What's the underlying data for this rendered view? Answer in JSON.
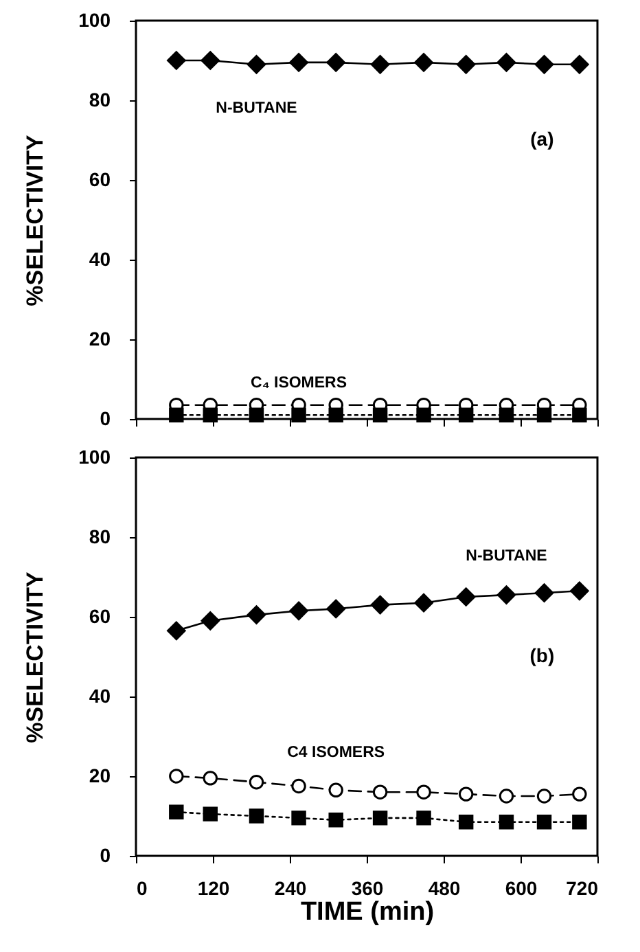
{
  "chart_data": [
    {
      "type": "line",
      "annotations": [
        "(a)"
      ],
      "x": [
        63,
        116,
        188,
        254,
        312,
        381,
        449,
        515,
        578,
        637,
        692
      ],
      "xlim": [
        0,
        720
      ],
      "xticks": [
        0,
        120,
        240,
        360,
        480,
        600,
        720
      ],
      "ylim": [
        0,
        100
      ],
      "yticks": [
        0,
        20,
        40,
        60,
        80,
        100
      ],
      "ylabel": "%SELECTIVITY",
      "tick_labels": "y",
      "series": [
        {
          "name": "N-BUTANE",
          "color": "#000000",
          "marker": "diamond",
          "line_style": "solid",
          "values": [
            90,
            90,
            89,
            89.5,
            89.5,
            89,
            89.5,
            89,
            89.5,
            89,
            89
          ]
        },
        {
          "name": "C₄ ISOMERS",
          "color": "#000000",
          "marker": "circle",
          "line_style": "dashed",
          "values": [
            3.5,
            3.5,
            3.5,
            3.5,
            3.5,
            3.5,
            3.5,
            3.5,
            3.5,
            3.5,
            3.5
          ]
        },
        {
          "color": "#000000",
          "marker": "square",
          "line_style": "dotted",
          "values": [
            1,
            1,
            1,
            1,
            1,
            1,
            1,
            1,
            1,
            1,
            1
          ]
        }
      ]
    },
    {
      "type": "line",
      "annotations": [
        "(b)"
      ],
      "x": [
        63,
        116,
        188,
        254,
        312,
        381,
        449,
        515,
        578,
        637,
        692
      ],
      "xlim": [
        0,
        720
      ],
      "xticks": [
        0,
        120,
        240,
        360,
        480,
        600,
        720
      ],
      "xlabel": "TIME (min)",
      "ylim": [
        0,
        100
      ],
      "yticks": [
        0,
        20,
        40,
        60,
        80,
        100
      ],
      "ylabel": "%SELECTIVITY",
      "series": [
        {
          "name": "N-BUTANE",
          "color": "#000000",
          "marker": "diamond",
          "line_style": "solid",
          "values": [
            56.5,
            59,
            60.5,
            61.5,
            62,
            63,
            63.5,
            65,
            65.5,
            66,
            66.5
          ]
        },
        {
          "name": "C4 ISOMERS",
          "color": "#000000",
          "marker": "circle",
          "line_style": "dashed",
          "values": [
            20,
            19.5,
            18.5,
            17.5,
            16.5,
            16,
            16,
            15.5,
            15,
            15,
            15.5
          ]
        },
        {
          "color": "#000000",
          "marker": "square",
          "line_style": "dotted",
          "values": [
            11,
            10.5,
            10,
            9.5,
            9,
            9.5,
            9.5,
            8.5,
            8.5,
            8.5,
            8.5
          ]
        }
      ]
    }
  ]
}
